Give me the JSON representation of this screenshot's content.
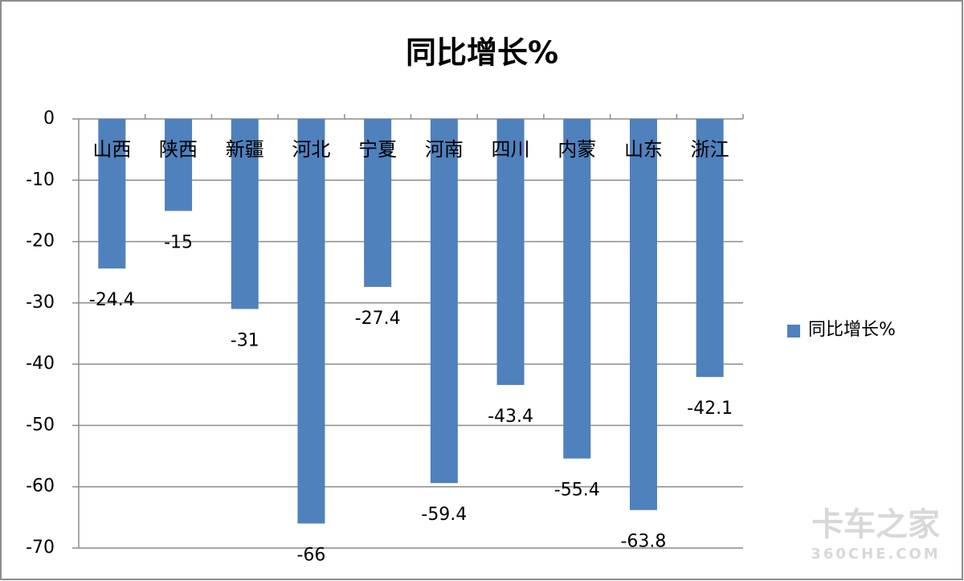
{
  "chart_data": {
    "type": "bar",
    "title": "同比增长%",
    "categories": [
      "山西",
      "陕西",
      "新疆",
      "河北",
      "宁夏",
      "河南",
      "四川",
      "内蒙",
      "山东",
      "浙江"
    ],
    "series": [
      {
        "name": "同比增长%",
        "color": "#4f81bd",
        "values": [
          -24.4,
          -15,
          -31,
          -66,
          -27.4,
          -59.4,
          -43.4,
          -55.4,
          -63.8,
          -42.1
        ]
      }
    ],
    "ylim": [
      -70,
      0
    ],
    "yticks": [
      0,
      -10,
      -20,
      -30,
      -40,
      -50,
      -60,
      -70
    ],
    "grid": true,
    "legend": "right",
    "watermark": [
      "卡车之家",
      "360CHE.COM"
    ]
  }
}
